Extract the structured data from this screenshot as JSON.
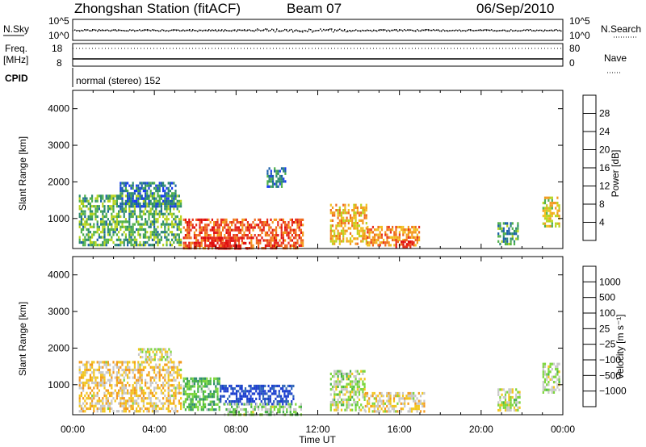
{
  "header": {
    "station": "Zhongshan Station (fitACF)",
    "beam": "Beam 07",
    "date": "06/Sep/2010"
  },
  "summary": {
    "nsky_label": "N.Sky",
    "nsky_ticks": [
      "10^5",
      "10^0"
    ],
    "nsearch_label": "N.Search",
    "nsearch_ticks": [
      "10^5",
      "10^0"
    ],
    "freq_label": "Freq.",
    "freq_unit": "[MHz]",
    "freq_ticks": [
      "18",
      "8"
    ],
    "nave_label": "Nave",
    "nave_ticks": [
      "80",
      "0"
    ],
    "cpid_label": "CPID",
    "cpid_value": "normal (stereo) 152"
  },
  "axes": {
    "xlabel": "Time UT",
    "ylabel": "Slant Range [km]",
    "x_ticks": [
      "00:00",
      "04:00",
      "08:00",
      "12:00",
      "16:00",
      "20:00",
      "00:00"
    ],
    "y_ticks": [
      "1000",
      "2000",
      "3000",
      "4000"
    ]
  },
  "power_scale": {
    "label": "Power [dB]",
    "ticks": [
      "4",
      "8",
      "12",
      "16",
      "20",
      "24",
      "28"
    ],
    "colors": [
      "#1a3cf0",
      "#1b5fa8",
      "#2e8c6e",
      "#4fb04a",
      "#b8d41e",
      "#f0c020",
      "#f39a1e",
      "#ef6a1e",
      "#e8301e",
      "#e01010"
    ]
  },
  "velocity_scale": {
    "label": "Velocity [m s⁻¹]",
    "ticks": [
      "1000",
      "500",
      "100",
      "25",
      "−25",
      "−100",
      "−500",
      "−1000"
    ],
    "colors": [
      "#1c3fcf",
      "#2f66b8",
      "#2e8c6e",
      "#47b24a",
      "#7cd63c",
      "#c8c8c8",
      "#f2c61e",
      "#f39a1e",
      "#ef6a1e",
      "#ea3a1a",
      "#e01010"
    ]
  },
  "chart_data": [
    {
      "type": "heatmap",
      "title": "Power",
      "xlabel": "Time UT",
      "ylabel": "Slant Range [km]",
      "xlim_hours": [
        0,
        24
      ],
      "ylim_km": [
        180,
        4500
      ],
      "colorbar": {
        "label": "Power [dB]",
        "range": [
          0,
          30
        ]
      },
      "patches": [
        {
          "t": [
            0.3,
            5.3
          ],
          "r": [
            300,
            1650
          ],
          "value": 10
        },
        {
          "t": [
            2.3,
            5.0
          ],
          "r": [
            1300,
            2000
          ],
          "value": 6
        },
        {
          "t": [
            5.4,
            11.3
          ],
          "r": [
            200,
            1000
          ],
          "value": 24
        },
        {
          "t": [
            6.6,
            8.6
          ],
          "r": [
            200,
            500
          ],
          "value": 29
        },
        {
          "t": [
            9.5,
            10.4
          ],
          "r": [
            1900,
            2400
          ],
          "value": 6
        },
        {
          "t": [
            12.6,
            14.4
          ],
          "r": [
            300,
            1400
          ],
          "value": 18
        },
        {
          "t": [
            14.4,
            17.0
          ],
          "r": [
            250,
            800
          ],
          "value": 20
        },
        {
          "t": [
            15.8,
            16.6
          ],
          "r": [
            200,
            400
          ],
          "value": 28
        },
        {
          "t": [
            20.8,
            21.8
          ],
          "r": [
            300,
            900
          ],
          "value": 8
        },
        {
          "t": [
            23.0,
            23.8
          ],
          "r": [
            800,
            1600
          ],
          "value": 16
        }
      ]
    },
    {
      "type": "heatmap",
      "title": "Velocity",
      "xlabel": "Time UT",
      "ylabel": "Slant Range [km]",
      "xlim_hours": [
        0,
        24
      ],
      "ylim_km": [
        180,
        4500
      ],
      "colorbar": {
        "label": "Velocity [m s-1]",
        "range": [
          -1000,
          1000
        ]
      },
      "patches": [
        {
          "t": [
            0.3,
            5.3
          ],
          "r": [
            300,
            1650
          ],
          "value": -150
        },
        {
          "t": [
            3.2,
            4.8
          ],
          "r": [
            1700,
            2000
          ],
          "value": 0
        },
        {
          "t": [
            5.4,
            7.2
          ],
          "r": [
            300,
            1200
          ],
          "value": 300
        },
        {
          "t": [
            7.2,
            10.8
          ],
          "r": [
            500,
            1000
          ],
          "value": 900
        },
        {
          "t": [
            7.4,
            11.2
          ],
          "r": [
            200,
            500
          ],
          "value": 150
        },
        {
          "t": [
            12.6,
            14.3
          ],
          "r": [
            300,
            1400
          ],
          "value": 80
        },
        {
          "t": [
            14.3,
            17.2
          ],
          "r": [
            250,
            800
          ],
          "value": -120
        },
        {
          "t": [
            20.8,
            21.9
          ],
          "r": [
            300,
            900
          ],
          "value": 60
        },
        {
          "t": [
            23.0,
            23.8
          ],
          "r": [
            800,
            1600
          ],
          "value": 100
        }
      ]
    }
  ]
}
